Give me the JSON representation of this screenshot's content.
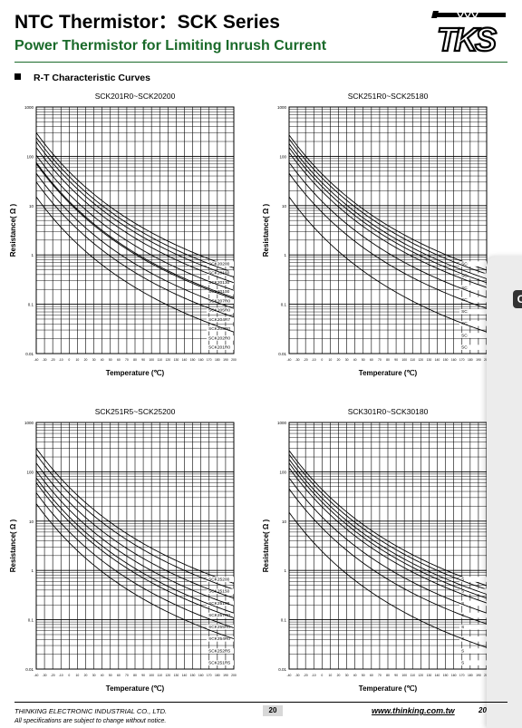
{
  "header": {
    "title": "NTC Thermistor：SCK Series",
    "subtitle": "Power Thermistor for Limiting Inrush Current",
    "logo_text": "TKS"
  },
  "section": {
    "heading": "R-T Characteristic Curves"
  },
  "colors": {
    "subtitle_green": "#1a6a2a",
    "grid": "#000000",
    "page_badge": "#d8d8d8"
  },
  "chart_data": [
    {
      "type": "line",
      "title": "SCK201R0~SCK20200",
      "xlabel": "Temperature (℃)",
      "ylabel": "Resistance( Ω )",
      "xlim": [
        -40,
        200
      ],
      "ylim": [
        0.01,
        1000
      ],
      "yscale": "log",
      "grid": true,
      "x_ticks": [
        "-40",
        "-30",
        "-20",
        "-10",
        "0",
        "10",
        "20",
        "30",
        "40",
        "50",
        "60",
        "70",
        "80",
        "90",
        "100",
        "110",
        "120",
        "130",
        "140",
        "150",
        "160",
        "170",
        "180",
        "190",
        "200"
      ],
      "y_ticks": [
        "1000",
        "100",
        "10",
        "1",
        "0.1",
        "0.01"
      ],
      "series": [
        {
          "name": "SCK20200",
          "r25": 20.0
        },
        {
          "name": "SCK20160",
          "r25": 16.0
        },
        {
          "name": "SCK20130",
          "r25": 13.0
        },
        {
          "name": "SCK20100",
          "r25": 10.0
        },
        {
          "name": "SCK207R0",
          "r25": 7.0
        },
        {
          "name": "SCK205R0",
          "r25": 5.0
        },
        {
          "name": "SCK204R7",
          "r25": 4.7
        },
        {
          "name": "SCK203R0",
          "r25": 3.0
        },
        {
          "name": "SCK202R0",
          "r25": 2.0
        },
        {
          "name": "SCK201R0",
          "r25": 1.0
        }
      ]
    },
    {
      "type": "line",
      "title": "SCK251R0~SCK25180",
      "xlabel": "Temperature (℃)",
      "ylabel": "Resistance( Ω )",
      "xlim": [
        -40,
        200
      ],
      "ylim": [
        0.01,
        1000
      ],
      "yscale": "log",
      "grid": true,
      "x_ticks": [
        "-40",
        "-30",
        "-20",
        "-10",
        "0",
        "10",
        "20",
        "30",
        "40",
        "50",
        "60",
        "70",
        "80",
        "90",
        "100",
        "110",
        "120",
        "130",
        "140",
        "150",
        "160",
        "170",
        "180",
        "190",
        "200"
      ],
      "y_ticks": [
        "1000",
        "100",
        "10",
        "1",
        "0.1",
        "0.01"
      ],
      "series": [
        {
          "name": "SC",
          "r25": 18.0
        },
        {
          "name": "SC",
          "r25": 15.0
        },
        {
          "name": "SC",
          "r25": 12.0
        },
        {
          "name": "SC",
          "r25": 10.0
        },
        {
          "name": "SC",
          "r25": 8.0
        },
        {
          "name": "SC",
          "r25": 5.0
        },
        {
          "name": "SC",
          "r25": 3.0
        },
        {
          "name": "SC",
          "r25": 1.0
        }
      ]
    },
    {
      "type": "line",
      "title": "SCK251R5~SCK25200",
      "xlabel": "Temperature (℃)",
      "ylabel": "Resistance( Ω )",
      "xlim": [
        -40,
        200
      ],
      "ylim": [
        0.01,
        1000
      ],
      "yscale": "log",
      "grid": true,
      "x_ticks": [
        "-40",
        "-30",
        "-20",
        "-10",
        "0",
        "10",
        "20",
        "30",
        "40",
        "50",
        "60",
        "70",
        "80",
        "90",
        "100",
        "110",
        "120",
        "130",
        "140",
        "150",
        "160",
        "170",
        "180",
        "190",
        "200"
      ],
      "y_ticks": [
        "1000",
        "100",
        "10",
        "1",
        "0.1",
        "0.01"
      ],
      "series": [
        {
          "name": "SCK25200",
          "r25": 20.0
        },
        {
          "name": "SCK25150",
          "r25": 15.0
        },
        {
          "name": "SCK25100",
          "r25": 10.0
        },
        {
          "name": "SCK257R0",
          "r25": 7.0
        },
        {
          "name": "SCK255R0",
          "r25": 5.0
        },
        {
          "name": "SCK254R0",
          "r25": 4.0
        },
        {
          "name": "SCK252R5",
          "r25": 2.5
        },
        {
          "name": "SCK251R5",
          "r25": 1.5
        }
      ]
    },
    {
      "type": "line",
      "title": "SCK301R0~SCK30180",
      "xlabel": "Temperature (℃)",
      "ylabel": "Resistance( Ω )",
      "xlim": [
        -40,
        200
      ],
      "ylim": [
        0.01,
        1000
      ],
      "yscale": "log",
      "grid": true,
      "x_ticks": [
        "-40",
        "-30",
        "-20",
        "-10",
        "0",
        "10",
        "20",
        "30",
        "40",
        "50",
        "60",
        "70",
        "80",
        "90",
        "100",
        "110",
        "120",
        "130",
        "140",
        "150",
        "160",
        "170",
        "180",
        "190",
        "200"
      ],
      "y_ticks": [
        "1000",
        "100",
        "10",
        "1",
        "0.1",
        "0.01"
      ],
      "series": [
        {
          "name": "S",
          "r25": 18.0
        },
        {
          "name": "S",
          "r25": 15.0
        },
        {
          "name": "S",
          "r25": 12.0
        },
        {
          "name": "S",
          "r25": 10.0
        },
        {
          "name": "S",
          "r25": 8.0
        },
        {
          "name": "S",
          "r25": 5.0
        },
        {
          "name": "S",
          "r25": 3.0
        },
        {
          "name": "S",
          "r25": 1.0
        }
      ]
    }
  ],
  "footer": {
    "company": "THINKING ELECTRONIC INDUSTRIAL CO., LTD.",
    "note": "All specifications are subject to change without notice.",
    "page": "20",
    "url": "www.thinking.com.tw",
    "year": "20"
  }
}
